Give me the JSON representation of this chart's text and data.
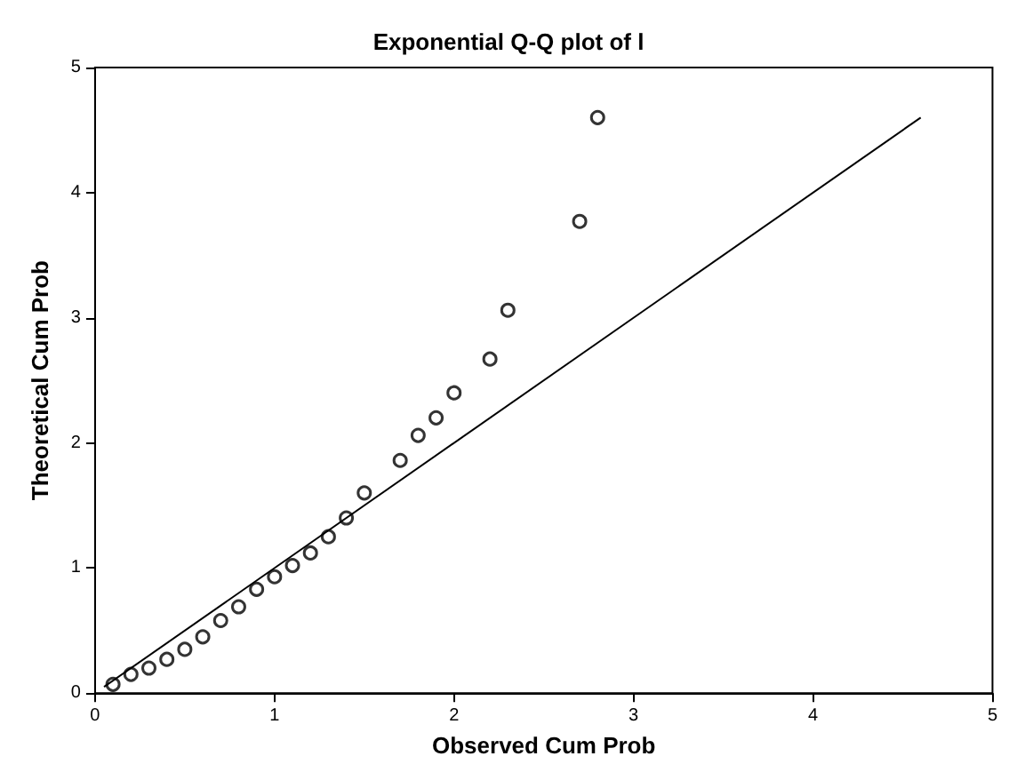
{
  "chart_data": {
    "type": "scatter",
    "title": "Exponential Q-Q plot of l",
    "xlabel": "Observed Cum Prob",
    "ylabel": "Theoretical Cum Prob",
    "xlim": [
      0,
      5
    ],
    "ylim": [
      0,
      5
    ],
    "xticks": [
      0,
      1,
      2,
      3,
      4,
      5
    ],
    "yticks": [
      0,
      1,
      2,
      3,
      4,
      5
    ],
    "grid": false,
    "series": [
      {
        "color": "#000000",
        "marker": "circle",
        "x": [
          0.1,
          0.2,
          0.3,
          0.4,
          0.5,
          0.6,
          0.7,
          0.8,
          0.9,
          1.0,
          1.1,
          1.2,
          1.3,
          1.4,
          1.5,
          1.7,
          1.8,
          1.9,
          2.0,
          2.2,
          2.3,
          2.7,
          2.8
        ],
        "values": [
          0.07,
          0.15,
          0.2,
          0.27,
          0.35,
          0.45,
          0.58,
          0.69,
          0.83,
          0.93,
          1.02,
          1.12,
          1.25,
          1.4,
          1.6,
          1.86,
          2.06,
          2.2,
          2.4,
          2.67,
          3.06,
          3.77,
          4.6
        ]
      },
      {
        "type": "line",
        "color": "#000000",
        "x": [
          0.05,
          4.6
        ],
        "values": [
          0.05,
          4.6
        ],
        "line_style": "solid"
      }
    ]
  }
}
